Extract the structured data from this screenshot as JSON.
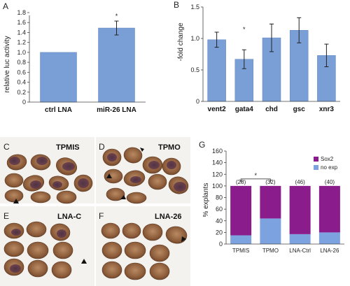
{
  "colors": {
    "bar": "#7a9fd6",
    "bar_edge": "#5f84c0",
    "sox2": "#8a1c8c",
    "no_exp": "#7da2e0",
    "photo_bg": "#f4f2ee",
    "embryo": "#9b6a45",
    "embryo_dark": "#4c2d47"
  },
  "panels": {
    "a": "A",
    "b": "B",
    "c": "C",
    "d": "D",
    "e": "E",
    "f": "F",
    "g": "G"
  },
  "photos": {
    "c": "TPMIS",
    "d": "TPMO",
    "e": "LNA-C",
    "f": "LNA-26"
  },
  "chart_data": [
    {
      "type": "bar",
      "panel": "A",
      "categories": [
        "ctrl LNA",
        "miR-26 LNA"
      ],
      "values": [
        1.0,
        1.49
      ],
      "errors": [
        0,
        0.14
      ],
      "significance": [
        "",
        "*"
      ],
      "ylabel": "relative luc activity",
      "ylim": [
        0,
        1.8
      ],
      "yticks": [
        "0",
        "0.2",
        "0.4",
        "0.6",
        "0.8",
        "1.0",
        "1.2",
        "1.4",
        "1.6",
        "1.8"
      ]
    },
    {
      "type": "bar",
      "panel": "B",
      "categories": [
        "vent2",
        "gata4",
        "chd",
        "gsc",
        "xnr3"
      ],
      "values": [
        0.98,
        0.67,
        1.01,
        1.13,
        0.73
      ],
      "errors": [
        0.12,
        0.15,
        0.22,
        0.2,
        0.18
      ],
      "significance": [
        "",
        "*",
        "",
        "",
        ""
      ],
      "ylabel": "-fold change",
      "ylim": [
        0,
        1.5
      ],
      "yticks": [
        "0",
        "0.5",
        "1.0",
        "1.5"
      ]
    },
    {
      "type": "bar",
      "stacked": true,
      "panel": "G",
      "categories": [
        "TPMIS",
        "TPMO",
        "LNA-Ctrl",
        "LNA-26"
      ],
      "counts": [
        "(28)",
        "(32)",
        "(46)",
        "(40)"
      ],
      "series": [
        {
          "name": "no exp",
          "values": [
            15,
            44,
            17,
            20
          ]
        },
        {
          "name": "Sox2",
          "values": [
            85,
            56,
            83,
            80
          ]
        }
      ],
      "ylabel": "% explants",
      "ylim": [
        0,
        160
      ],
      "yticks": [
        "0",
        "20",
        "40",
        "60",
        "80",
        "100",
        "120",
        "140",
        "160"
      ],
      "significance_bracket": {
        "from": "TPMIS",
        "to": "TPMO",
        "label": "*"
      }
    }
  ]
}
